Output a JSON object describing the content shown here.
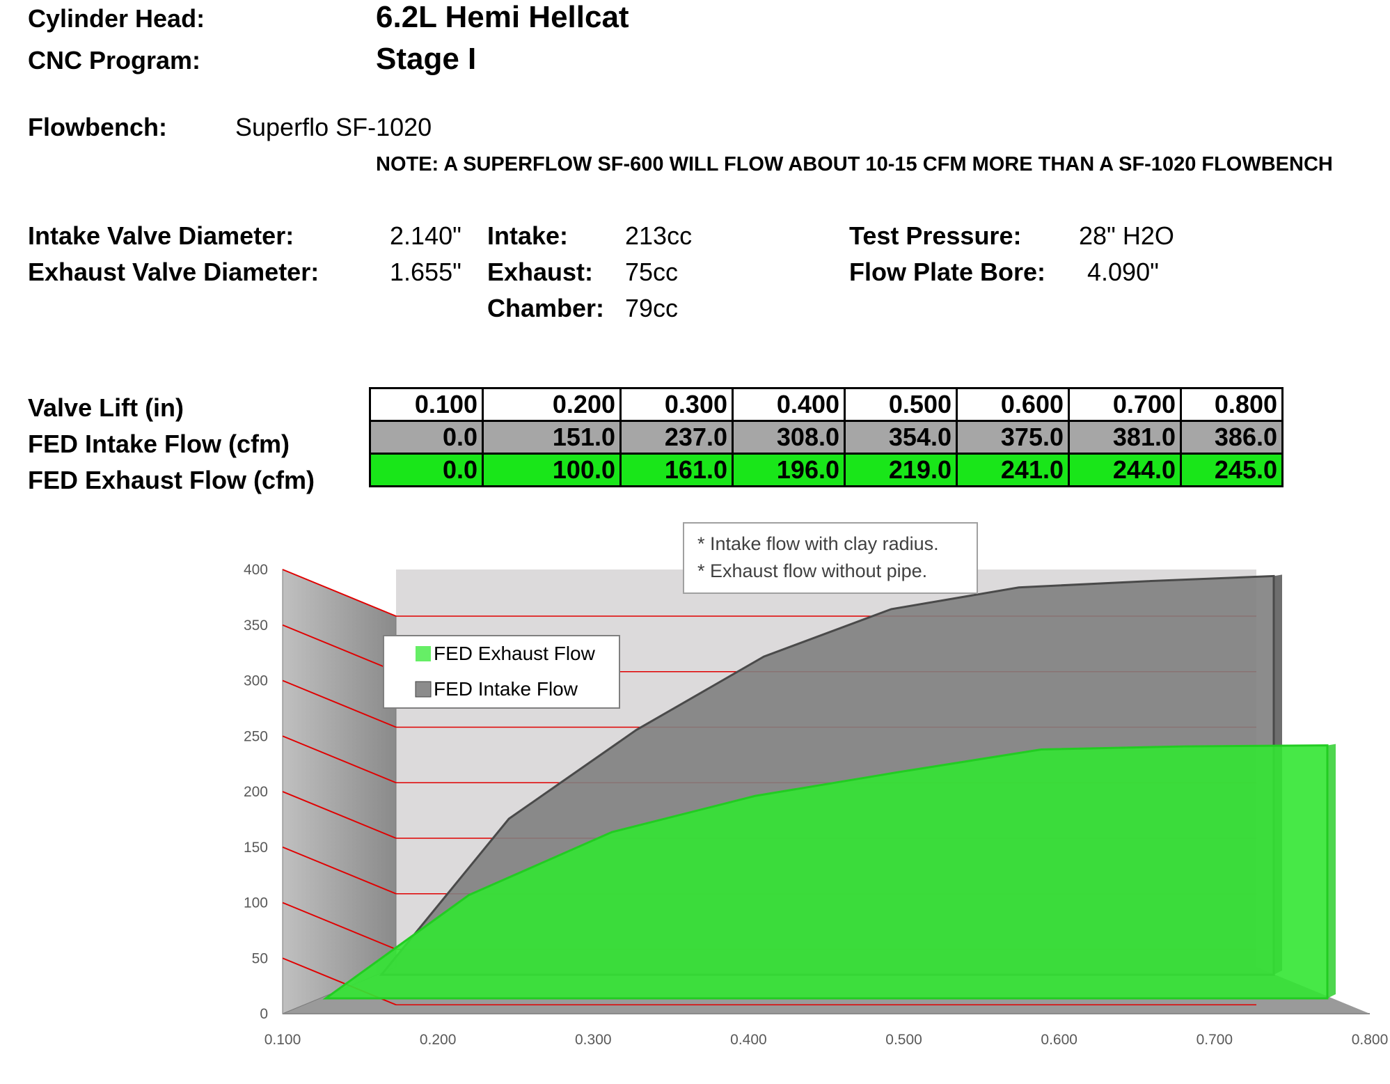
{
  "header": {
    "cylinder_head_label": "Cylinder Head:",
    "cylinder_head_value": "6.2L Hemi Hellcat",
    "cnc_label": "CNC Program:",
    "cnc_value": "Stage I",
    "flowbench_label": "Flowbench:",
    "flowbench_value": "Superflo SF-1020",
    "note": "NOTE: A SUPERFLOW SF-600 WILL FLOW ABOUT 10-15 CFM MORE THAN A SF-1020 FLOWBENCH"
  },
  "specs": {
    "intake_valve_label": "Intake Valve Diameter:",
    "intake_valve_value": "2.140\"",
    "exhaust_valve_label": "Exhaust Valve Diameter:",
    "exhaust_valve_value": "1.655\"",
    "intake_label": "Intake:",
    "intake_value": "213cc",
    "exhaust_label": "Exhaust:",
    "exhaust_value": "75cc",
    "chamber_label": "Chamber:",
    "chamber_value": "79cc",
    "test_pressure_label": "Test Pressure:",
    "test_pressure_value": "28\" H2O",
    "flow_plate_label": "Flow Plate Bore:",
    "flow_plate_value": "4.090\""
  },
  "table": {
    "row_labels": [
      "Valve Lift (in)",
      "FED Intake Flow (cfm)",
      "FED Exhaust Flow (cfm)"
    ],
    "lift": [
      "0.100",
      "0.200",
      "0.300",
      "0.400",
      "0.500",
      "0.600",
      "0.700",
      "0.800"
    ],
    "intake": [
      "0.0",
      "151.0",
      "237.0",
      "308.0",
      "354.0",
      "375.0",
      "381.0",
      "386.0"
    ],
    "exhaust": [
      "0.0",
      "100.0",
      "161.0",
      "196.0",
      "219.0",
      "241.0",
      "244.0",
      "245.0"
    ]
  },
  "annotation": {
    "line1": "* Intake flow with clay radius.",
    "line2": "* Exhaust flow without pipe."
  },
  "colors": {
    "intake_fill": "#7f7f7f",
    "exhaust_fill": "#33e633",
    "gridline": "#e00000",
    "back_wall": "#dcdadb",
    "side_wall": "#9a9a9a"
  },
  "chart_data": {
    "type": "area",
    "style": "3d",
    "x": [
      0.1,
      0.2,
      0.3,
      0.4,
      0.5,
      0.6,
      0.7,
      0.8
    ],
    "x_tick_labels": [
      "0.100",
      "0.200",
      "0.300",
      "0.400",
      "0.500",
      "0.600",
      "0.700",
      "0.800"
    ],
    "y_tick_labels": [
      "0",
      "50",
      "100",
      "150",
      "200",
      "250",
      "300",
      "350",
      "400"
    ],
    "ylim": [
      0,
      400
    ],
    "grid": true,
    "legend_position": "top-left",
    "series": [
      {
        "name": "FED Exhaust Flow",
        "values": [
          0,
          100,
          161,
          196,
          219,
          241,
          244,
          245
        ]
      },
      {
        "name": "FED Intake Flow",
        "values": [
          0,
          151,
          237,
          308,
          354,
          375,
          381,
          386
        ]
      }
    ]
  }
}
